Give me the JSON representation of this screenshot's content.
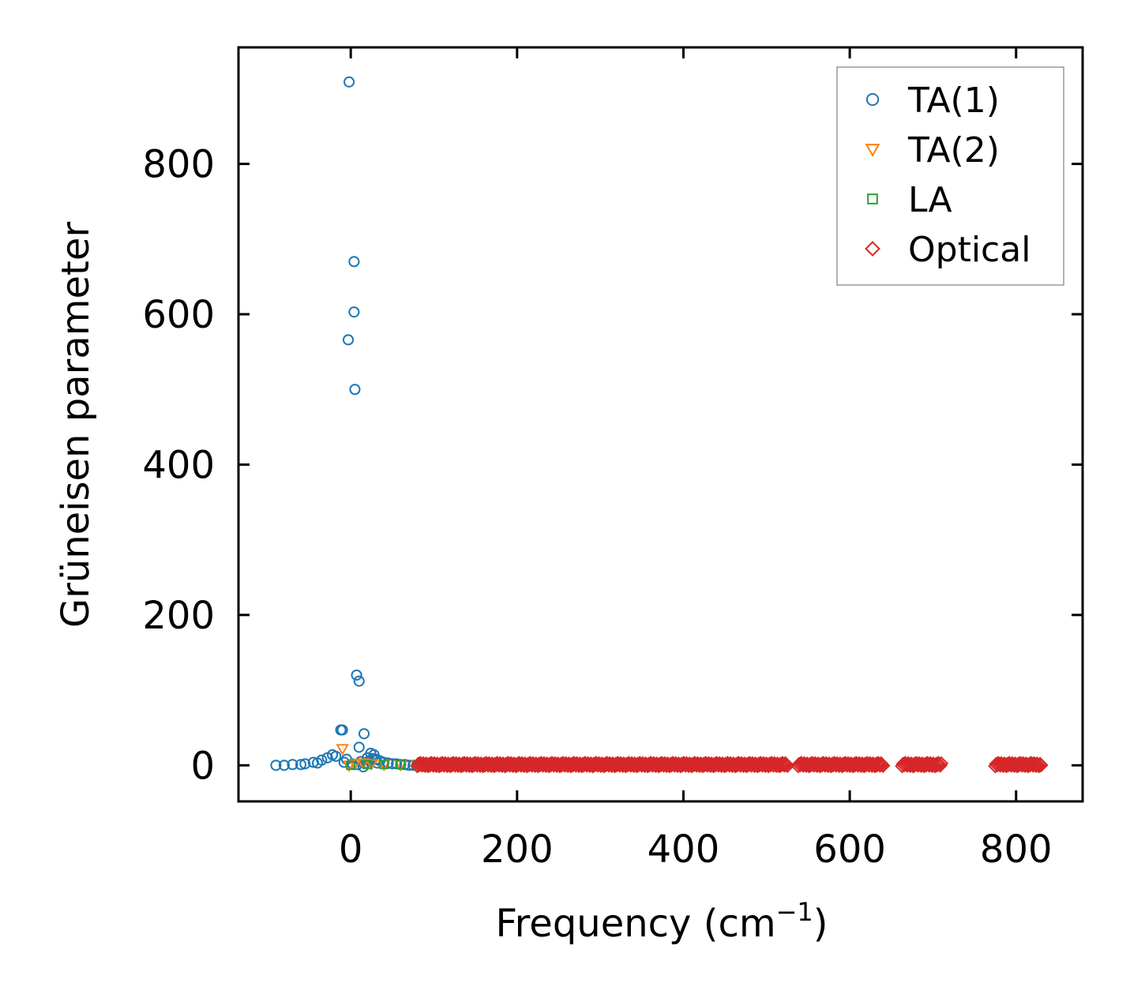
{
  "chart_data": {
    "type": "scatter",
    "xlabel": "Frequency (cm",
    "xlabel_sup": "−1",
    "xlabel_end": ")",
    "ylabel": "Grüneisen parameter",
    "xlim": [
      -135,
      880
    ],
    "ylim": [
      -48,
      955
    ],
    "xticks": [
      0,
      200,
      400,
      600,
      800
    ],
    "yticks": [
      0,
      200,
      400,
      600,
      800
    ],
    "legend_position": "upper-right",
    "grid": false,
    "series": [
      {
        "name": "TA(1)",
        "marker": "circle",
        "color": "#1f77b4",
        "points": [
          [
            -2,
            909
          ],
          [
            4,
            670
          ],
          [
            4,
            603
          ],
          [
            -3,
            566
          ],
          [
            5,
            500
          ],
          [
            7,
            120
          ],
          [
            10,
            112
          ],
          [
            -10,
            47
          ],
          [
            -12,
            47
          ],
          [
            16,
            42
          ],
          [
            10,
            24
          ],
          [
            24,
            16
          ],
          [
            28,
            14
          ],
          [
            20,
            10
          ],
          [
            -18,
            12
          ],
          [
            -22,
            14
          ],
          [
            -28,
            10
          ],
          [
            -35,
            7
          ],
          [
            -45,
            4
          ],
          [
            -55,
            2
          ],
          [
            -70,
            1
          ],
          [
            -90,
            0
          ],
          [
            -80,
            0
          ],
          [
            -60,
            1
          ],
          [
            -40,
            3
          ],
          [
            30,
            8
          ],
          [
            35,
            6
          ],
          [
            40,
            4
          ],
          [
            45,
            3
          ],
          [
            50,
            2
          ],
          [
            55,
            2
          ],
          [
            60,
            1
          ],
          [
            65,
            1
          ],
          [
            70,
            0
          ],
          [
            75,
            0
          ],
          [
            15,
            -2
          ],
          [
            12,
            5
          ],
          [
            18,
            3
          ],
          [
            22,
            6
          ],
          [
            26,
            9
          ],
          [
            -5,
            8
          ],
          [
            -8,
            4
          ],
          [
            2,
            2
          ],
          [
            8,
            1
          ],
          [
            32,
            3
          ]
        ]
      },
      {
        "name": "TA(2)",
        "marker": "triangle-down",
        "color": "#ff7f0e",
        "points": [
          [
            -10,
            22
          ],
          [
            -2,
            0
          ],
          [
            5,
            2
          ],
          [
            15,
            3
          ],
          [
            25,
            2
          ],
          [
            40,
            1
          ],
          [
            60,
            0.5
          ],
          [
            80,
            0.5
          ],
          [
            88,
            0
          ]
        ]
      },
      {
        "name": "LA",
        "marker": "square",
        "color": "#2ca02c",
        "points": [
          [
            0,
            0
          ],
          [
            20,
            1
          ],
          [
            40,
            1
          ],
          [
            60,
            1
          ],
          [
            80,
            1
          ],
          [
            95,
            1
          ]
        ]
      },
      {
        "name": "Optical",
        "marker": "diamond",
        "color": "#d62728",
        "segments": [
          {
            "from": 80,
            "to": 525
          },
          {
            "from": 538,
            "to": 640
          },
          {
            "from": 663,
            "to": 710
          },
          {
            "from": 775,
            "to": 830
          }
        ],
        "y_range": [
          -1,
          3
        ]
      }
    ]
  }
}
